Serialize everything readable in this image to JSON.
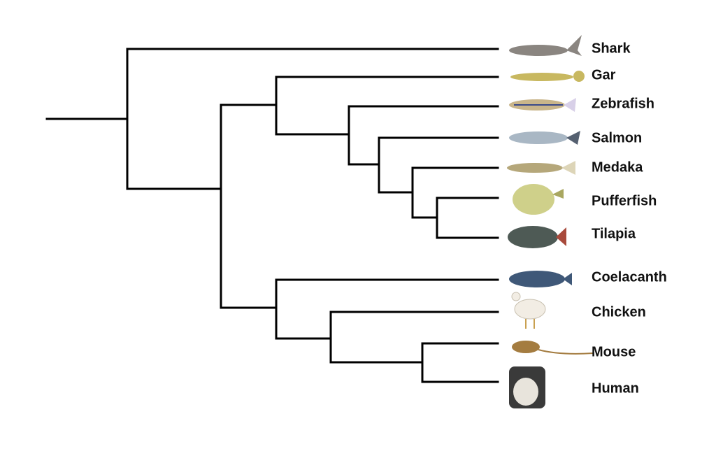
{
  "taxa": [
    {
      "label": "Shark"
    },
    {
      "label": "Gar"
    },
    {
      "label": "Zebrafish"
    },
    {
      "label": "Salmon"
    },
    {
      "label": "Medaka"
    },
    {
      "label": "Pufferfish"
    },
    {
      "label": "Tilapia"
    },
    {
      "label": "Coelacanth"
    },
    {
      "label": "Chicken"
    },
    {
      "label": "Mouse"
    },
    {
      "label": "Human"
    }
  ]
}
